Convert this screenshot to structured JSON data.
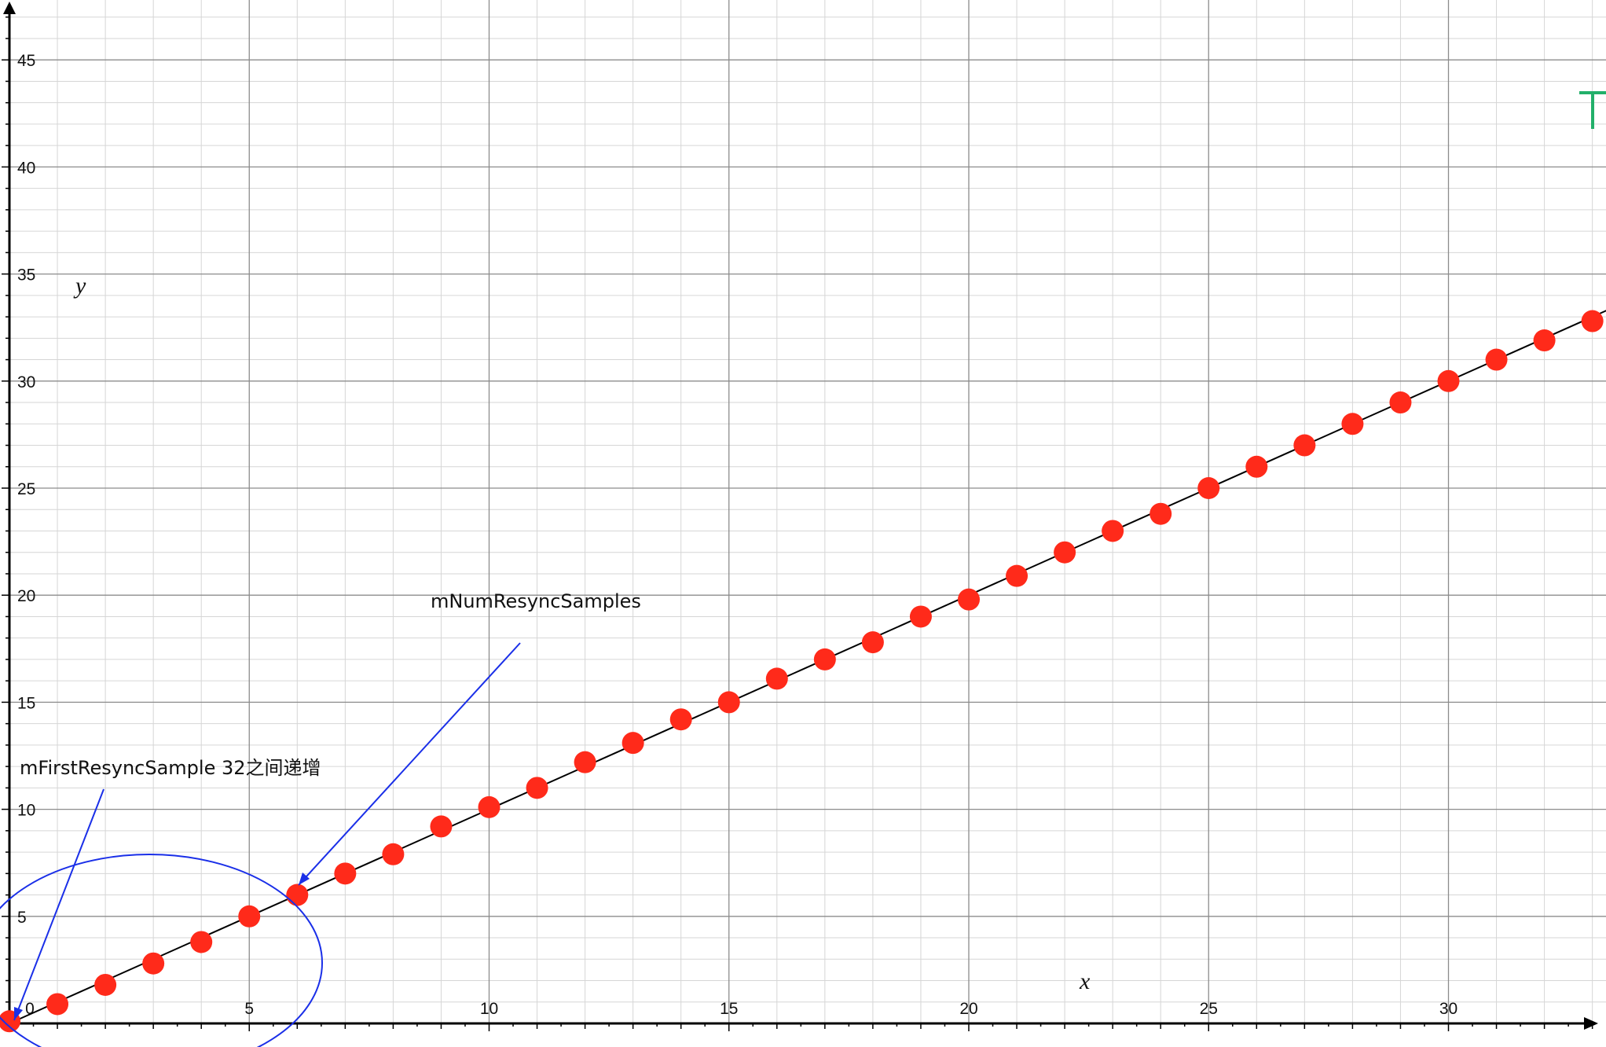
{
  "chart_data": {
    "type": "scatter",
    "xlabel": "x",
    "ylabel": "y",
    "xlim": [
      0,
      33.3
    ],
    "ylim": [
      0,
      47.5
    ],
    "x_ticks": [
      0,
      5,
      10,
      15,
      20,
      25,
      30
    ],
    "y_ticks": [
      5,
      10,
      15,
      20,
      25,
      30,
      35,
      40,
      45
    ],
    "grid": true,
    "minor_grid": true,
    "series": [
      {
        "x": [
          0,
          1,
          2,
          3,
          4,
          5,
          6,
          7,
          8,
          9,
          10,
          11,
          12,
          13,
          14,
          15,
          16,
          17,
          18,
          19,
          20,
          21,
          22,
          23,
          24,
          25,
          26,
          27,
          28,
          29,
          30,
          31,
          32,
          33
        ],
        "y": [
          0.1,
          0.9,
          1.8,
          2.8,
          3.8,
          5.0,
          6.0,
          7.0,
          7.9,
          9.2,
          10.1,
          11.0,
          12.2,
          13.1,
          14.2,
          15.0,
          16.1,
          17.0,
          17.8,
          19.0,
          19.8,
          20.9,
          22.0,
          23.0,
          23.8,
          25.0,
          26.0,
          27.0,
          28.0,
          29.0,
          30.0,
          31.0,
          31.9,
          32.8
        ],
        "color": "#ff2a1a"
      }
    ],
    "fit_line": {
      "x": [
        0,
        33.3
      ],
      "y": [
        0,
        33.3
      ],
      "color": "#000000"
    },
    "annotations": [
      {
        "text": "mNumResyncSamples",
        "color": "#1a2fe8"
      },
      {
        "text": "mFirstResyncSample 32之间递增",
        "color": "#1a2fe8"
      }
    ],
    "colors": {
      "major_grid": "#8c8c8c",
      "minor_grid": "#d6d6d6",
      "annotation": "#1a2fe8",
      "edge_mark": "#22b06a"
    }
  }
}
